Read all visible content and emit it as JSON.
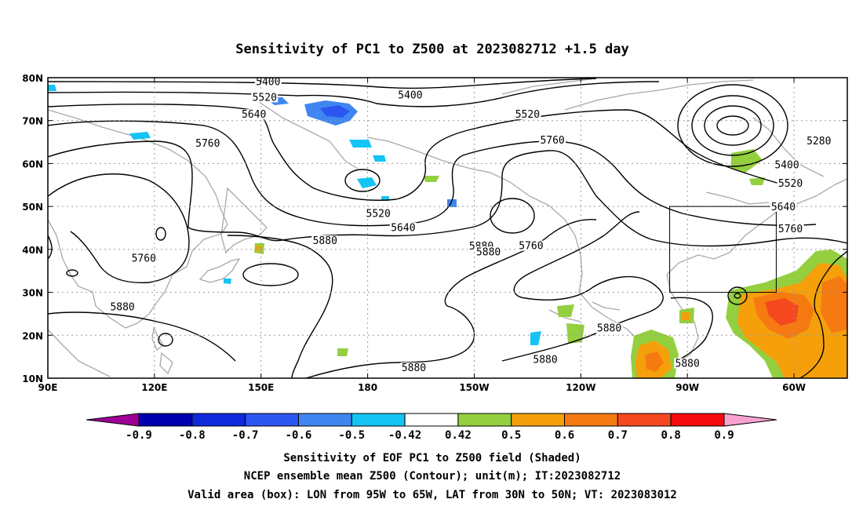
{
  "chart_data": {
    "type": "heatmap",
    "title": "Sensitivity of PC1 to Z500 at 2023082712 +1.5 day",
    "x_ticks": [
      "90E",
      "120E",
      "150E",
      "180",
      "150W",
      "120W",
      "90W",
      "60W"
    ],
    "y_ticks": [
      "10N",
      "20N",
      "30N",
      "40N",
      "50N",
      "60N",
      "70N",
      "80N"
    ],
    "xlim_lon_east": [
      90,
      315
    ],
    "ylim_lat": [
      10,
      80
    ],
    "grid": true,
    "valid_box": {
      "lon_west": 95,
      "lon_east": 65,
      "lat_south": 30,
      "lat_north": 50
    },
    "colorbar": {
      "levels": [
        "-0.9",
        "-0.8",
        "-0.7",
        "-0.6",
        "-0.5",
        "-0.42",
        "0.42",
        "0.5",
        "0.6",
        "0.7",
        "0.8",
        "0.9"
      ],
      "colors": [
        "#9e0096",
        "#0000b0",
        "#0f2adc",
        "#2c56f0",
        "#3f86f0",
        "#13c4f4",
        "#ffffff",
        "#93cf3e",
        "#f5a00b",
        "#f57a12",
        "#f5481e",
        "#f50a10",
        "#f8a2d0"
      ]
    },
    "contour_labels": [
      {
        "text": "5400",
        "lon": 152,
        "lat": 78.6
      },
      {
        "text": "5520",
        "lon": 151,
        "lat": 75.0
      },
      {
        "text": "5640",
        "lon": 148,
        "lat": 71.0
      },
      {
        "text": "5760",
        "lon": 135,
        "lat": 64.3
      },
      {
        "text": "5400",
        "lon": 192,
        "lat": 75.5
      },
      {
        "text": "5520",
        "lon": 225,
        "lat": 71.0
      },
      {
        "text": "5760",
        "lon": 232,
        "lat": 65.0
      },
      {
        "text": "5280",
        "lon": 307,
        "lat": 64.8
      },
      {
        "text": "5400",
        "lon": 298,
        "lat": 59.3
      },
      {
        "text": "5520",
        "lon": 299,
        "lat": 55.0
      },
      {
        "text": "5640",
        "lon": 297,
        "lat": 49.5
      },
      {
        "text": "5760",
        "lon": 299,
        "lat": 44.4
      },
      {
        "text": "5520",
        "lon": 183,
        "lat": 47.9
      },
      {
        "text": "5640",
        "lon": 190,
        "lat": 44.6
      },
      {
        "text": "5880",
        "lon": 212,
        "lat": 40.3
      },
      {
        "text": "5880",
        "lon": 214,
        "lat": 39.0
      },
      {
        "text": "5760",
        "lon": 226,
        "lat": 40.4
      },
      {
        "text": "5880",
        "lon": 168,
        "lat": 41.6
      },
      {
        "text": "5760",
        "lon": 117,
        "lat": 37.5
      },
      {
        "text": "5880",
        "lon": 111,
        "lat": 26.2
      },
      {
        "text": "5880",
        "lon": 193,
        "lat": 12.0
      },
      {
        "text": "5880",
        "lon": 230,
        "lat": 13.9
      },
      {
        "text": "5880",
        "lon": 248,
        "lat": 21.2
      },
      {
        "text": "5880",
        "lon": 270,
        "lat": 13.0
      }
    ]
  },
  "caption": {
    "line1": "Sensitivity of EOF PC1 to Z500 field (Shaded)",
    "line2": "NCEP ensemble mean Z500 (Contour); unit(m); IT:2023082712",
    "line3": "Valid area (box): LON from 95W to 65W, LAT from 30N to 50N; VT: 2023083012"
  }
}
